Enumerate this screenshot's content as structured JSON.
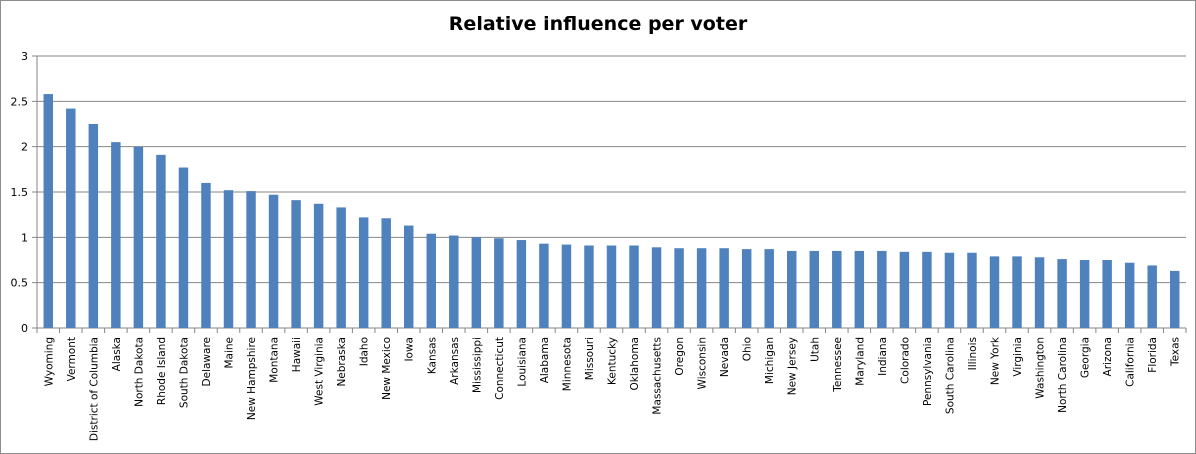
{
  "chart_data": {
    "type": "bar",
    "title": "Relative influence per voter",
    "xlabel": "",
    "ylabel": "",
    "ylim": [
      0,
      3
    ],
    "yticks": [
      0,
      0.5,
      1,
      1.5,
      2,
      2.5,
      3
    ],
    "grid": true,
    "legend": null,
    "bar_color": "#4f81bd",
    "categories": [
      "Wyoming",
      "Vermont",
      "District of Columbia",
      "Alaska",
      "North Dakota",
      "Rhode Island",
      "South Dakota",
      "Delaware",
      "Maine",
      "New Hampshire",
      "Montana",
      "Hawaii",
      "West Virginia",
      "Nebraska",
      "Idaho",
      "New Mexico",
      "Iowa",
      "Kansas",
      "Arkansas",
      "Mississippi",
      "Connecticut",
      "Louisiana",
      "Alabama",
      "Minnesota",
      "Missouri",
      "Kentucky",
      "Oklahoma",
      "Massachusetts",
      "Oregon",
      "Wisconsin",
      "Nevada",
      "Ohio",
      "Michigan",
      "New Jersey",
      "Utah",
      "Tennessee",
      "Maryland",
      "Indiana",
      "Colorado",
      "Pennsylvania",
      "South Carolina",
      "Illinois",
      "New York",
      "Virginia",
      "Washington",
      "North Carolina",
      "Georgia",
      "Arizona",
      "California",
      "Florida",
      "Texas"
    ],
    "values": [
      2.58,
      2.42,
      2.25,
      2.05,
      2.0,
      1.91,
      1.77,
      1.6,
      1.52,
      1.51,
      1.47,
      1.41,
      1.37,
      1.33,
      1.22,
      1.21,
      1.13,
      1.04,
      1.02,
      1.0,
      0.99,
      0.97,
      0.93,
      0.92,
      0.91,
      0.91,
      0.91,
      0.89,
      0.88,
      0.88,
      0.88,
      0.87,
      0.87,
      0.85,
      0.85,
      0.85,
      0.85,
      0.85,
      0.84,
      0.84,
      0.83,
      0.83,
      0.79,
      0.79,
      0.78,
      0.76,
      0.75,
      0.75,
      0.72,
      0.69,
      0.63
    ]
  }
}
